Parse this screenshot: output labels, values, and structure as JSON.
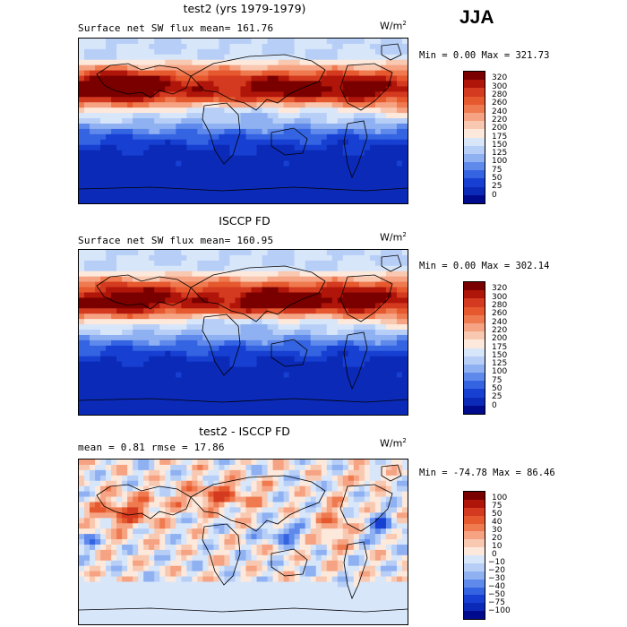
{
  "season": "JJA",
  "unit_base": "W/m",
  "unit_sup": "2",
  "panels": [
    {
      "title": "test2 (yrs 1979-1979)",
      "stat_line": "Surface net SW flux      mean= 161.76",
      "minmax": "Min =    0.00 Max = 321.73",
      "chart_data": {
        "type": "heatmap",
        "variable": "Surface net SW flux",
        "units": "W/m2",
        "mean": 161.76,
        "min": 0.0,
        "max": 321.73,
        "colorbar_levels": [
          "320",
          "300",
          "280",
          "260",
          "240",
          "220",
          "200",
          "175",
          "150",
          "125",
          "100",
          "75",
          "50",
          "25",
          "0"
        ]
      }
    },
    {
      "title": "ISCCP FD",
      "stat_line": "Surface net SW flux      mean= 160.95",
      "minmax": "Min =    0.00 Max = 302.14",
      "chart_data": {
        "type": "heatmap",
        "variable": "Surface net SW flux",
        "units": "W/m2",
        "mean": 160.95,
        "min": 0.0,
        "max": 302.14,
        "colorbar_levels": [
          "320",
          "300",
          "280",
          "260",
          "240",
          "220",
          "200",
          "175",
          "150",
          "125",
          "100",
          "75",
          "50",
          "25",
          "0"
        ]
      }
    },
    {
      "title": "test2 - ISCCP FD",
      "stat_line": "mean =    0.81         rmse =   17.86",
      "minmax": "Min = -74.78 Max =   86.46",
      "chart_data": {
        "type": "heatmap",
        "variable": "Difference (test2 - ISCCP FD)",
        "units": "W/m2",
        "mean": 0.81,
        "rmse": 17.86,
        "min": -74.78,
        "max": 86.46,
        "colorbar_levels": [
          "100",
          "75",
          "50",
          "40",
          "30",
          "20",
          "10",
          "0",
          "−10",
          "−20",
          "−30",
          "−40",
          "−50",
          "−75",
          "−100"
        ]
      }
    }
  ],
  "colors": {
    "abs_scale": [
      "#7a0000",
      "#b0150a",
      "#d43a1f",
      "#e6582e",
      "#ef7a50",
      "#f5a383",
      "#f9c8b0",
      "#fde8dc",
      "#d8e6fa",
      "#b7cff7",
      "#8fb1f2",
      "#5f8aec",
      "#3464e2",
      "#1740d2",
      "#0c2ab8",
      "#000a8c"
    ],
    "diff_scale": [
      "#7a0000",
      "#b0150a",
      "#d43a1f",
      "#e6582e",
      "#ef7a50",
      "#f5a383",
      "#f9c8b0",
      "#fde8dc",
      "#d8e6fa",
      "#b7cff7",
      "#8fb1f2",
      "#5f8aec",
      "#3464e2",
      "#1740d2",
      "#0c2ab8",
      "#000a8c"
    ]
  }
}
